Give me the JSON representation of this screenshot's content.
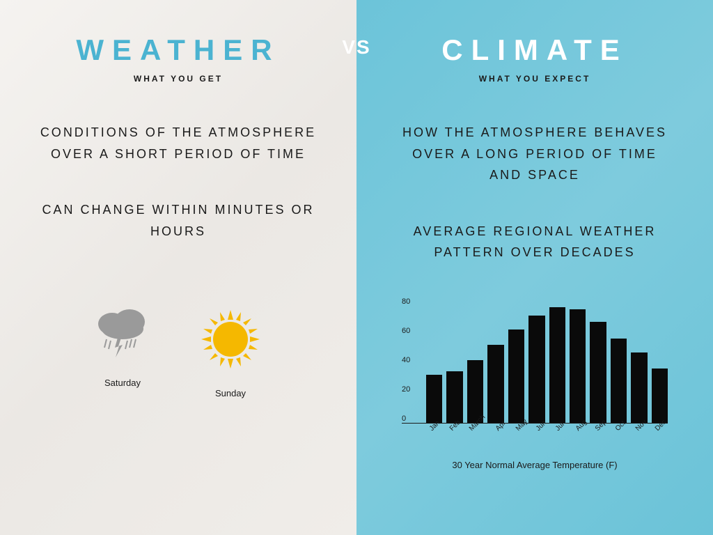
{
  "comparison": {
    "vs_label": "VS"
  },
  "weather": {
    "title": "WEATHER",
    "subtitle": "WHAT YOU GET",
    "desc1": "CONDITIONS OF THE ATMOSPHERE OVER A SHORT PERIOD OF TIME",
    "desc2": "CAN CHANGE WITHIN MINUTES OR HOURS",
    "days": {
      "saturday": "Saturday",
      "sunday": "Sunday"
    },
    "title_color": "#4bb3d1",
    "bg_gradient": [
      "#f5f3f0",
      "#ebe8e4",
      "#f0ede9"
    ]
  },
  "climate": {
    "title": "CLIMATE",
    "subtitle": "WHAT YOU EXPECT",
    "desc1": "HOW THE ATMOSPHERE BEHAVES OVER A LONG PERIOD OF TIME AND SPACE",
    "desc2": "AVERAGE REGIONAL WEATHER PATTERN OVER DECADES",
    "title_color": "#ffffff",
    "bg_gradient": [
      "#6cc4d9",
      "#7ecbdd",
      "#6bc3d8"
    ]
  },
  "chart": {
    "type": "bar",
    "title": "30 Year Normal Average Temperature (F)",
    "categories": [
      "Jan",
      "Feb",
      "March",
      "Apr",
      "May",
      "Jun",
      "Jul",
      "Aug",
      "Sep",
      "Oct",
      "Nov",
      "Dec"
    ],
    "values": [
      31,
      33,
      40,
      50,
      60,
      69,
      74,
      73,
      65,
      54,
      45,
      35
    ],
    "ylim": [
      0,
      80
    ],
    "ytick_step": 20,
    "yticks": [
      0,
      20,
      40,
      60,
      80
    ],
    "bar_color": "#0a0a0a",
    "axis_color": "#1a1a1a",
    "label_fontsize": 11
  },
  "icons": {
    "storm": {
      "cloud_color": "#9a9a9a",
      "rain_color": "#9a9a9a"
    },
    "sun": {
      "body_color": "#f5b800",
      "ray_color": "#f5b800"
    }
  }
}
